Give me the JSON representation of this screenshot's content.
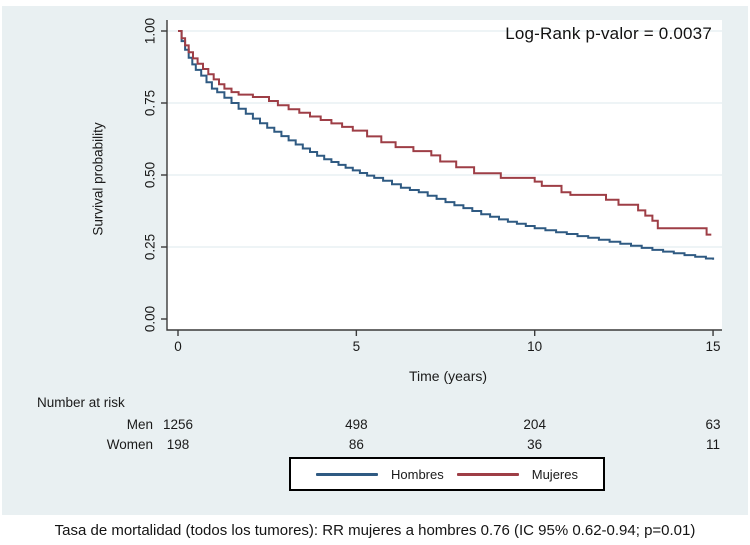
{
  "caption": "Tasa de mortalidad (todos los tumores): RR mujeres a hombres 0.76 (IC 95% 0.62-0.94; p=0.01)",
  "colors": {
    "canvas_bg": "#e9f0f2",
    "plot_bg": "#ffffff",
    "grid": "#dde9ec",
    "axis": "#3a3a3a",
    "text": "#1a1a1a",
    "legend_border": "#000000",
    "hombres_blue": "#2f5a82",
    "mujeres_red": "#9e3e46"
  },
  "chart_data": {
    "type": "line",
    "subtype": "kaplan-meier-step",
    "annotation": "Log-Rank p-valor = 0.0037",
    "xlabel": "Time (years)",
    "ylabel": "Survival probability",
    "xlim": [
      0,
      15
    ],
    "ylim": [
      0,
      1
    ],
    "grid": "horizontal",
    "legend_position": "bottom-center",
    "xticks": [
      {
        "v": 0,
        "label": "0"
      },
      {
        "v": 5,
        "label": "5"
      },
      {
        "v": 10,
        "label": "10"
      },
      {
        "v": 15,
        "label": "15"
      }
    ],
    "yticks": [
      {
        "v": 0.0,
        "label": "0.00"
      },
      {
        "v": 0.25,
        "label": "0.25"
      },
      {
        "v": 0.5,
        "label": "0.50"
      },
      {
        "v": 0.75,
        "label": "0.75"
      },
      {
        "v": 1.0,
        "label": "1.00"
      }
    ],
    "gridline_values": [
      0.25,
      0.5,
      0.75,
      1.0
    ],
    "series": [
      {
        "name": "Hombres",
        "color": "#2f5a82",
        "points": [
          [
            0,
            1.0
          ],
          [
            0.1,
            0.965
          ],
          [
            0.2,
            0.935
          ],
          [
            0.3,
            0.907
          ],
          [
            0.4,
            0.884
          ],
          [
            0.5,
            0.865
          ],
          [
            0.65,
            0.845
          ],
          [
            0.8,
            0.822
          ],
          [
            0.95,
            0.8
          ],
          [
            1.1,
            0.787
          ],
          [
            1.3,
            0.768
          ],
          [
            1.5,
            0.75
          ],
          [
            1.7,
            0.73
          ],
          [
            1.9,
            0.713
          ],
          [
            2.1,
            0.696
          ],
          [
            2.3,
            0.68
          ],
          [
            2.5,
            0.664
          ],
          [
            2.7,
            0.65
          ],
          [
            2.9,
            0.635
          ],
          [
            3.1,
            0.62
          ],
          [
            3.3,
            0.606
          ],
          [
            3.5,
            0.592
          ],
          [
            3.7,
            0.58
          ],
          [
            3.9,
            0.567
          ],
          [
            4.1,
            0.555
          ],
          [
            4.3,
            0.545
          ],
          [
            4.5,
            0.535
          ],
          [
            4.7,
            0.525
          ],
          [
            4.9,
            0.516
          ],
          [
            5.1,
            0.507
          ],
          [
            5.3,
            0.498
          ],
          [
            5.5,
            0.49
          ],
          [
            5.75,
            0.48
          ],
          [
            6.0,
            0.468
          ],
          [
            6.25,
            0.456
          ],
          [
            6.5,
            0.448
          ],
          [
            6.75,
            0.44
          ],
          [
            7.0,
            0.428
          ],
          [
            7.25,
            0.417
          ],
          [
            7.5,
            0.406
          ],
          [
            7.75,
            0.395
          ],
          [
            8.0,
            0.385
          ],
          [
            8.25,
            0.375
          ],
          [
            8.5,
            0.364
          ],
          [
            8.75,
            0.355
          ],
          [
            9.0,
            0.346
          ],
          [
            9.25,
            0.338
          ],
          [
            9.5,
            0.331
          ],
          [
            9.75,
            0.323
          ],
          [
            10.0,
            0.315
          ],
          [
            10.3,
            0.308
          ],
          [
            10.6,
            0.301
          ],
          [
            10.9,
            0.295
          ],
          [
            11.2,
            0.288
          ],
          [
            11.5,
            0.282
          ],
          [
            11.8,
            0.275
          ],
          [
            12.1,
            0.268
          ],
          [
            12.4,
            0.261
          ],
          [
            12.7,
            0.254
          ],
          [
            13.0,
            0.247
          ],
          [
            13.3,
            0.24
          ],
          [
            13.6,
            0.234
          ],
          [
            13.9,
            0.228
          ],
          [
            14.2,
            0.222
          ],
          [
            14.5,
            0.216
          ],
          [
            14.8,
            0.21
          ],
          [
            15.0,
            0.206
          ]
        ]
      },
      {
        "name": "Mujeres",
        "color": "#9e3e46",
        "points": [
          [
            0,
            1.0
          ],
          [
            0.1,
            0.975
          ],
          [
            0.2,
            0.95
          ],
          [
            0.3,
            0.926
          ],
          [
            0.42,
            0.905
          ],
          [
            0.55,
            0.886
          ],
          [
            0.7,
            0.868
          ],
          [
            0.85,
            0.85
          ],
          [
            1.0,
            0.832
          ],
          [
            1.15,
            0.815
          ],
          [
            1.3,
            0.8
          ],
          [
            1.5,
            0.788
          ],
          [
            1.7,
            0.779
          ],
          [
            2.1,
            0.771
          ],
          [
            2.55,
            0.757
          ],
          [
            2.8,
            0.742
          ],
          [
            3.1,
            0.728
          ],
          [
            3.4,
            0.716
          ],
          [
            3.7,
            0.703
          ],
          [
            4.0,
            0.691
          ],
          [
            4.3,
            0.679
          ],
          [
            4.6,
            0.667
          ],
          [
            4.9,
            0.654
          ],
          [
            5.3,
            0.634
          ],
          [
            5.7,
            0.614
          ],
          [
            6.1,
            0.597
          ],
          [
            6.6,
            0.583
          ],
          [
            7.1,
            0.568
          ],
          [
            7.35,
            0.547
          ],
          [
            7.8,
            0.527
          ],
          [
            8.3,
            0.506
          ],
          [
            9.05,
            0.49
          ],
          [
            10.0,
            0.477
          ],
          [
            10.2,
            0.462
          ],
          [
            10.75,
            0.44
          ],
          [
            11.0,
            0.431
          ],
          [
            12.0,
            0.414
          ],
          [
            12.35,
            0.397
          ],
          [
            12.9,
            0.377
          ],
          [
            13.1,
            0.359
          ],
          [
            13.3,
            0.341
          ],
          [
            13.45,
            0.315
          ],
          [
            14.8,
            0.315
          ],
          [
            14.82,
            0.293
          ],
          [
            14.95,
            0.293
          ]
        ]
      }
    ],
    "risk_table": {
      "title": "Number at risk",
      "time_points": [
        0,
        5,
        10,
        15
      ],
      "rows": [
        {
          "label": "Men",
          "values": [
            "1256",
            "498",
            "204",
            "63"
          ]
        },
        {
          "label": "Women",
          "values": [
            "198",
            "86",
            "36",
            "11"
          ]
        }
      ]
    }
  }
}
